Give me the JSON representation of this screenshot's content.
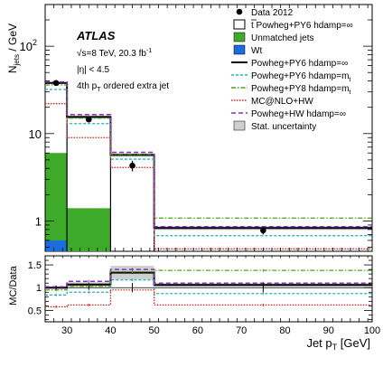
{
  "chart_data": {
    "type": "line",
    "x": {
      "label": "Jet p",
      "label_sub": "T",
      "unit": "[GeV]",
      "range": [
        25,
        100
      ],
      "ticks": [
        30,
        40,
        50,
        60,
        70,
        80,
        90,
        100
      ],
      "bin_edges": [
        25,
        30,
        40,
        50,
        100
      ]
    },
    "main_panel": {
      "ylabel": "N",
      "ylabel_sub": "jets",
      "ylabel_unit": "/ GeV",
      "yscale": "log",
      "ylim": [
        0.45,
        300
      ],
      "major_ticks": [
        {
          "v": 1,
          "label": "1"
        },
        {
          "v": 10,
          "label": "10"
        },
        {
          "v": 100,
          "label": "10",
          "sup": "2"
        }
      ],
      "annotation": {
        "atlas": "ATLAS",
        "energy_prefix": "√s=8 TeV, 20.3 fb",
        "energy_sup": "-1",
        "eta": "|η| < 4.5",
        "jet_order_prefix": "4th p",
        "jet_order_sub": "T",
        "jet_order_suffix": " ordered extra jet"
      }
    },
    "ratio_panel": {
      "ylabel": "MC/Data",
      "ylim": [
        0.25,
        1.7
      ],
      "ticks": [
        0.5,
        1,
        1.5
      ],
      "tick_labels": [
        "0.5",
        "1",
        "1.5"
      ]
    },
    "data": {
      "name": "Data 2012",
      "points": [
        {
          "x": 27.5,
          "y": 38,
          "err": 2.5,
          "ratio": 1.0,
          "ratio_err": 0.04
        },
        {
          "x": 35,
          "y": 14.5,
          "err": 1.0,
          "ratio": 1.0,
          "ratio_err": 0.05
        },
        {
          "x": 45,
          "y": 4.3,
          "err": 0.6,
          "ratio": 1.0,
          "ratio_err": 0.1
        },
        {
          "x": 75,
          "y": 0.78,
          "err": 0.08,
          "ratio": 1.0,
          "ratio_err": 0.1
        }
      ]
    },
    "stack": {
      "total": {
        "name": "Powheg+PY6 hdamp=∞",
        "name_prefix": "t",
        "name_suffix": " Powheg+PY6 hdamp=∞",
        "values": [
          38,
          15.5,
          5.7,
          0.83
        ]
      },
      "unmatched": {
        "name": "Unmatched jets",
        "values": [
          6,
          1.4,
          0,
          0
        ]
      },
      "wt": {
        "name": "Wt",
        "values": [
          0.6,
          0,
          0,
          0
        ]
      }
    },
    "series": [
      {
        "name": "Powheg+PY6 hdamp=∞",
        "style": "solid",
        "values": [
          38,
          15.5,
          5.7,
          0.83
        ],
        "ratios": [
          1.0,
          1.07,
          1.33,
          1.06
        ]
      },
      {
        "name": "Powheg+PY6 hdamp=m",
        "name_sub": "t",
        "style": "dashed",
        "values": [
          32,
          13,
          5.1,
          0.68
        ],
        "ratios": [
          0.84,
          0.9,
          1.17,
          0.87
        ]
      },
      {
        "name": "Powheg+PY8 hdamp=m",
        "name_sub": "t",
        "style": "dashdot",
        "values": [
          36,
          15,
          5.8,
          1.08
        ],
        "ratios": [
          0.95,
          1.03,
          1.35,
          1.38
        ]
      },
      {
        "name": "MC@NLO+HW",
        "style": "dotted",
        "values": [
          22,
          9,
          4.1,
          0.48
        ],
        "ratios": [
          0.58,
          0.62,
          0.95,
          0.62
        ]
      },
      {
        "name": "Powheg+HW hdamp=∞",
        "style": "longdash",
        "values": [
          39,
          16.5,
          6.1,
          0.86
        ],
        "ratios": [
          1.02,
          1.14,
          1.4,
          1.1
        ]
      }
    ],
    "stat_uncertainty": {
      "name": "Stat. uncertainty",
      "main_rel": [
        0.03,
        0.04,
        0.05,
        0.05
      ],
      "ratio_band": [
        [
          0.97,
          1.03
        ],
        [
          1.02,
          1.12
        ],
        [
          1.18,
          1.48
        ],
        [
          1.02,
          1.1
        ]
      ]
    },
    "colors": {
      "data": "#000000",
      "total_outline": "#000000",
      "unmatched_fill": "#3daa2a",
      "wt_fill": "#1a6ddb",
      "powheg_py6_inf": "#000000",
      "powheg_py6_mt": "#23b6bd",
      "powheg_py8_mt": "#4aa31e",
      "mcnlo_hw": "#e22020",
      "powheg_hw_inf": "#8b2fb3",
      "stat_band": "#cfcfcf"
    }
  }
}
